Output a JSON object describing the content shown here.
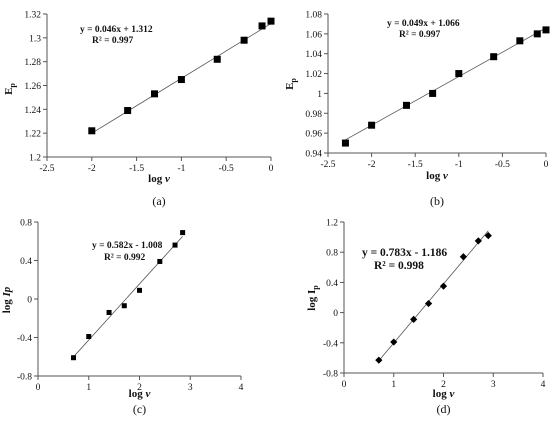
{
  "chart_data": [
    {
      "type": "scatter",
      "panel_label": "(a)",
      "xlabel_main": "log ",
      "xlabel_var": "v",
      "ylabel_main": "E",
      "ylabel_sub": "p",
      "ylabel_style": "normal",
      "xlim": [
        -2.5,
        0
      ],
      "ylim": [
        1.2,
        1.32
      ],
      "xticks": [
        -2.5,
        -2,
        -1.5,
        -1,
        -0.5,
        0
      ],
      "xtick_labels": [
        "-2.5",
        "-2",
        "-1.5",
        "-1",
        "-0.5",
        "0"
      ],
      "yticks": [
        1.2,
        1.22,
        1.24,
        1.26,
        1.28,
        1.3,
        1.32
      ],
      "ytick_labels": [
        "1.2",
        "1.22",
        "1.24",
        "1.26",
        "1.28",
        "1.3",
        "1.32"
      ],
      "marker": "square",
      "grid": false,
      "equation": "y = 0.046x + 1.312",
      "r2": "R² = 0.997",
      "trendline": {
        "slope": 0.046,
        "intercept": 1.312
      },
      "x": [
        -2.0,
        -1.6,
        -1.3,
        -1.0,
        -0.6,
        -0.3,
        -0.1,
        0.0
      ],
      "y": [
        1.222,
        1.239,
        1.253,
        1.265,
        1.282,
        1.298,
        1.31,
        1.314
      ]
    },
    {
      "type": "scatter",
      "panel_label": "(b)",
      "xlabel_main": "log ",
      "xlabel_var": "v",
      "ylabel_main": "E",
      "ylabel_sub": "p",
      "ylabel_style": "normal",
      "xlim": [
        -2.5,
        0
      ],
      "ylim": [
        0.94,
        1.08
      ],
      "xticks": [
        -2.5,
        -2,
        -1.5,
        -1,
        -0.5,
        0
      ],
      "xtick_labels": [
        "-2.5",
        "-2",
        "-1.5",
        "-1",
        "-0.5",
        "0"
      ],
      "yticks": [
        0.94,
        0.96,
        0.98,
        1.0,
        1.02,
        1.04,
        1.06,
        1.08
      ],
      "ytick_labels": [
        "0.94",
        "0.96",
        "0.98",
        "1",
        "1.02",
        "1.04",
        "1.06",
        "1.08"
      ],
      "marker": "square",
      "grid": false,
      "equation": "y = 0.049x + 1.066",
      "r2": "R² = 0.997",
      "trendline": {
        "slope": 0.049,
        "intercept": 1.066
      },
      "x": [
        -2.3,
        -2.0,
        -1.6,
        -1.3,
        -1.0,
        -0.6,
        -0.3,
        -0.1,
        0.0
      ],
      "y": [
        0.95,
        0.968,
        0.988,
        1.0,
        1.02,
        1.037,
        1.053,
        1.06,
        1.064
      ]
    },
    {
      "type": "scatter",
      "panel_label": "(c)",
      "xlabel_main": "log ",
      "xlabel_var": "v",
      "ylabel_main": "log ",
      "ylabel_sub": "Ip",
      "ylabel_style": "log-italic",
      "xlim": [
        0,
        4
      ],
      "ylim": [
        -0.8,
        0.8
      ],
      "xticks": [
        0,
        1,
        2,
        3,
        4
      ],
      "xtick_labels": [
        "0",
        "1",
        "2",
        "3",
        "4"
      ],
      "yticks": [
        -0.8,
        -0.4,
        0,
        0.4,
        0.8
      ],
      "ytick_labels": [
        "-0.8",
        "-0.4",
        "0",
        "0.4",
        "0.8"
      ],
      "marker": "square-small",
      "grid": false,
      "equation": "y = 0.582x - 1.008",
      "r2": "R² = 0.992",
      "trendline": {
        "slope": 0.582,
        "intercept": -1.008
      },
      "x": [
        0.7,
        1.0,
        1.4,
        1.7,
        2.0,
        2.4,
        2.7,
        2.85
      ],
      "y": [
        -0.61,
        -0.39,
        -0.14,
        -0.07,
        0.09,
        0.39,
        0.56,
        0.69
      ]
    },
    {
      "type": "scatter",
      "panel_label": "(d)",
      "xlabel_main": "log ",
      "xlabel_var": "v",
      "ylabel_main": "log I",
      "ylabel_sub": "p",
      "ylabel_style": "normal",
      "xlim": [
        0,
        4
      ],
      "ylim": [
        -0.8,
        1.2
      ],
      "xticks": [
        0,
        1,
        2,
        3,
        4
      ],
      "xtick_labels": [
        "0",
        "1",
        "2",
        "3",
        "4"
      ],
      "yticks": [
        -0.8,
        -0.4,
        0,
        0.4,
        0.8,
        1.2
      ],
      "ytick_labels": [
        "-0.8",
        "-0.4",
        "0",
        "0.4",
        "0.8",
        "1.2"
      ],
      "marker": "diamond",
      "grid": false,
      "equation": "y = 0.783x - 1.186",
      "r2": "R² = 0.998",
      "trendline": {
        "slope": 0.783,
        "intercept": -1.186
      },
      "x": [
        0.7,
        1.0,
        1.4,
        1.7,
        2.0,
        2.4,
        2.7,
        2.9
      ],
      "y": [
        -0.63,
        -0.39,
        -0.09,
        0.12,
        0.35,
        0.74,
        0.95,
        1.02
      ]
    }
  ]
}
